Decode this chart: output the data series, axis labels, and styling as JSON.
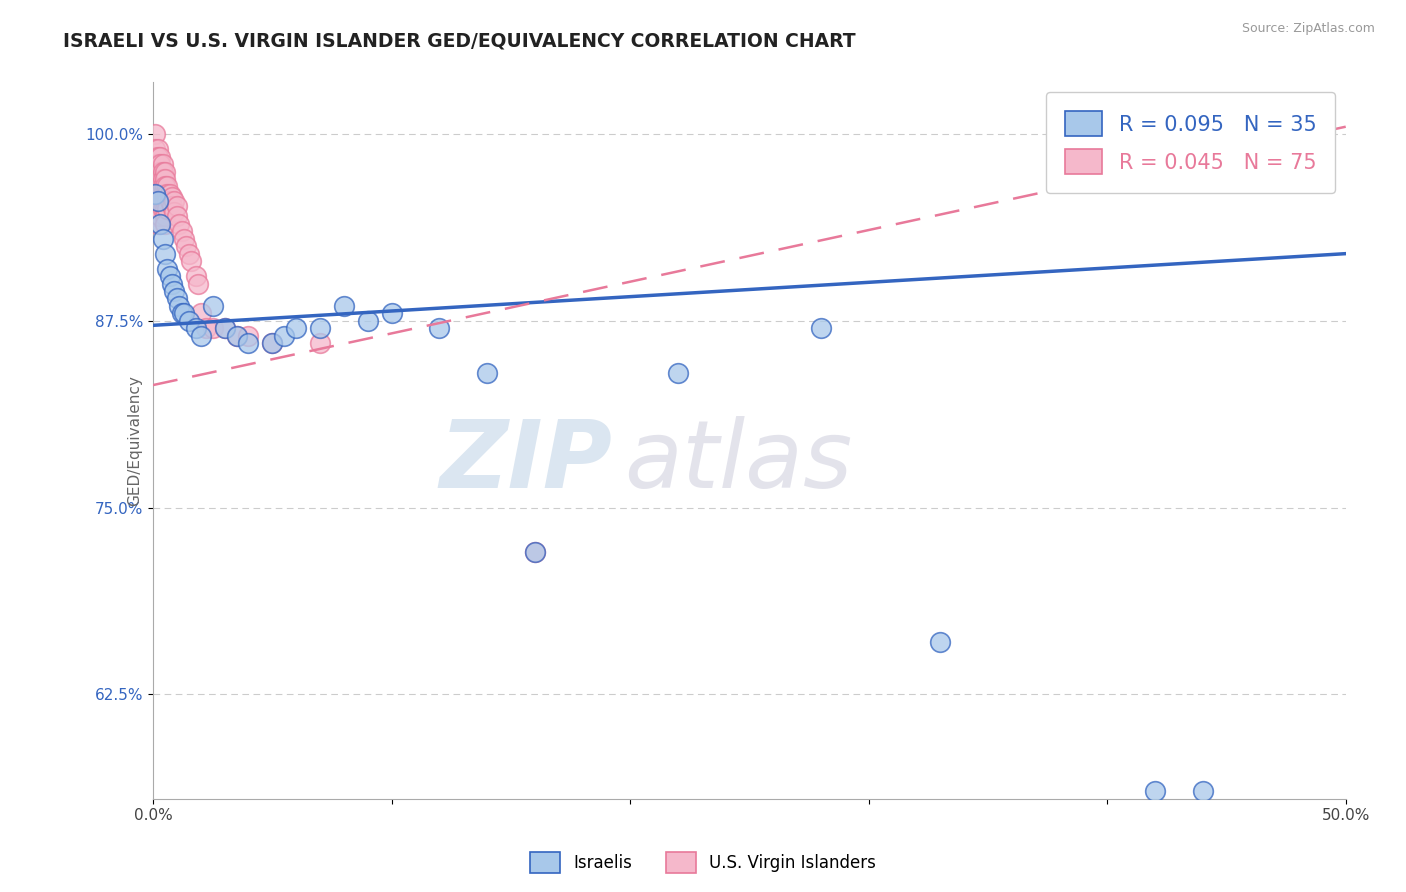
{
  "title": "ISRAELI VS U.S. VIRGIN ISLANDER GED/EQUIVALENCY CORRELATION CHART",
  "source": "Source: ZipAtlas.com",
  "ylabel": "GED/Equivalency",
  "xlim": [
    0.0,
    0.5
  ],
  "ylim": [
    0.555,
    1.035
  ],
  "yticks": [
    0.625,
    0.75,
    0.875,
    1.0
  ],
  "ytick_labels": [
    "62.5%",
    "75.0%",
    "87.5%",
    "100.0%"
  ],
  "xticks": [
    0.0,
    0.1,
    0.2,
    0.3,
    0.4,
    0.5
  ],
  "xtick_labels": [
    "0.0%",
    "",
    "",
    "",
    "",
    "50.0%"
  ],
  "israeli_R": 0.095,
  "israeli_N": 35,
  "usvi_R": 0.045,
  "usvi_N": 75,
  "israeli_color": "#a8c8ea",
  "usvi_color": "#f5b8cb",
  "israeli_line_color": "#3465c0",
  "usvi_line_color": "#e8799a",
  "israeli_trend_x0": 0.0,
  "israeli_trend_y0": 0.872,
  "israeli_trend_x1": 0.5,
  "israeli_trend_y1": 0.92,
  "usvi_trend_x0": 0.0,
  "usvi_trend_y0": 0.832,
  "usvi_trend_x1": 0.5,
  "usvi_trend_y1": 1.005,
  "israeli_points_x": [
    0.001,
    0.002,
    0.003,
    0.004,
    0.005,
    0.006,
    0.007,
    0.008,
    0.009,
    0.01,
    0.011,
    0.012,
    0.013,
    0.015,
    0.018,
    0.02,
    0.025,
    0.03,
    0.035,
    0.04,
    0.05,
    0.055,
    0.06,
    0.07,
    0.08,
    0.09,
    0.1,
    0.12,
    0.14,
    0.28,
    0.33,
    0.16,
    0.22,
    0.42,
    0.44
  ],
  "israeli_points_y": [
    0.96,
    0.955,
    0.94,
    0.93,
    0.92,
    0.91,
    0.905,
    0.9,
    0.895,
    0.89,
    0.885,
    0.88,
    0.88,
    0.875,
    0.87,
    0.865,
    0.885,
    0.87,
    0.865,
    0.86,
    0.86,
    0.865,
    0.87,
    0.87,
    0.885,
    0.875,
    0.88,
    0.87,
    0.84,
    0.87,
    0.66,
    0.72,
    0.84,
    0.56,
    0.56
  ],
  "usvi_points_x": [
    0.001,
    0.001,
    0.001,
    0.001,
    0.001,
    0.001,
    0.001,
    0.001,
    0.001,
    0.001,
    0.001,
    0.002,
    0.002,
    0.002,
    0.002,
    0.002,
    0.002,
    0.002,
    0.002,
    0.002,
    0.002,
    0.002,
    0.003,
    0.003,
    0.003,
    0.003,
    0.003,
    0.003,
    0.003,
    0.003,
    0.003,
    0.004,
    0.004,
    0.004,
    0.004,
    0.004,
    0.004,
    0.004,
    0.005,
    0.005,
    0.005,
    0.005,
    0.005,
    0.005,
    0.005,
    0.005,
    0.006,
    0.006,
    0.006,
    0.006,
    0.007,
    0.007,
    0.008,
    0.008,
    0.009,
    0.009,
    0.01,
    0.01,
    0.011,
    0.012,
    0.013,
    0.014,
    0.015,
    0.016,
    0.018,
    0.019,
    0.02,
    0.022,
    0.025,
    0.03,
    0.035,
    0.04,
    0.05,
    0.07,
    0.16
  ],
  "usvi_points_y": [
    1.0,
    0.99,
    0.985,
    0.98,
    0.975,
    0.97,
    0.965,
    0.96,
    0.955,
    0.95,
    0.945,
    0.99,
    0.985,
    0.98,
    0.975,
    0.97,
    0.965,
    0.96,
    0.955,
    0.95,
    0.945,
    0.94,
    0.985,
    0.98,
    0.975,
    0.97,
    0.965,
    0.96,
    0.955,
    0.95,
    0.945,
    0.98,
    0.975,
    0.97,
    0.965,
    0.96,
    0.955,
    0.95,
    0.975,
    0.97,
    0.965,
    0.96,
    0.955,
    0.95,
    0.945,
    0.94,
    0.965,
    0.96,
    0.955,
    0.95,
    0.96,
    0.955,
    0.958,
    0.952,
    0.955,
    0.948,
    0.952,
    0.945,
    0.94,
    0.935,
    0.93,
    0.925,
    0.92,
    0.915,
    0.905,
    0.9,
    0.88,
    0.87,
    0.87,
    0.87,
    0.865,
    0.865,
    0.86,
    0.86,
    0.72
  ],
  "watermark_zip": "ZIP",
  "watermark_atlas": "atlas",
  "background_color": "#ffffff",
  "grid_color": "#cccccc"
}
